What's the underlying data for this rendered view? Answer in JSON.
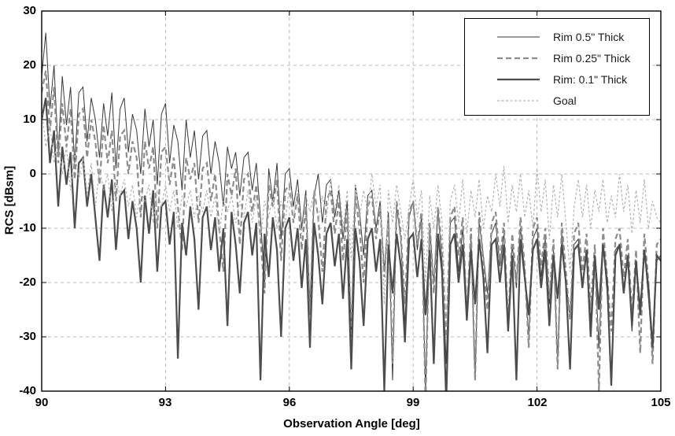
{
  "chart_data": {
    "type": "line",
    "title": "",
    "xlabel": "Observation Angle [deg]",
    "ylabel": "RCS [dBsm]",
    "xlim": [
      90,
      105
    ],
    "ylim": [
      -40,
      30
    ],
    "xticks": [
      90,
      93,
      96,
      99,
      102,
      105
    ],
    "yticks": [
      30,
      20,
      10,
      0,
      -10,
      -20,
      -30,
      -40
    ],
    "grid": true,
    "grid_color": "#b9b9b9",
    "axis_color": "#000000",
    "legend_position": "top-right",
    "x_start": 90,
    "x_step": 0.1,
    "series": [
      {
        "name": "Rim 0.5\" Thick",
        "color": "#383838",
        "width": 1,
        "dash": "",
        "values": [
          18,
          26,
          12,
          20,
          4,
          18,
          9,
          16,
          2,
          15,
          16,
          6,
          14,
          10,
          3,
          13,
          7,
          15,
          1,
          12,
          14,
          4,
          11,
          8,
          0,
          12,
          5,
          10,
          -2,
          11,
          13,
          2,
          9,
          6,
          -3,
          10,
          3,
          8,
          -1,
          7,
          8,
          0,
          6,
          2,
          -6,
          5,
          1,
          4,
          -4,
          3,
          4,
          -3,
          2,
          -8,
          -20,
          1,
          -5,
          2,
          -12,
          0,
          1,
          -6,
          -1,
          -10,
          -3,
          -25,
          -4,
          0,
          -9,
          -2,
          -1,
          -8,
          -3,
          -12,
          -5,
          -30,
          -2,
          -7,
          -15,
          -4,
          -3,
          -10,
          -5,
          -18,
          -7,
          -38,
          -6,
          -12,
          -28,
          -8,
          -5,
          -14,
          -8,
          -40,
          -10,
          -20,
          -7,
          -16,
          -35,
          -9,
          -8,
          -18,
          -10,
          -25,
          -12,
          -38,
          -9,
          -15,
          -22,
          -11,
          -9,
          -17,
          -11,
          -28,
          -13,
          -21,
          -10,
          -18,
          -30,
          -12,
          -10,
          -19,
          -12,
          -24,
          -14,
          -35,
          -11,
          -20,
          -26,
          -13,
          -12,
          -20,
          -14,
          -27,
          -15,
          -32,
          -13,
          -22,
          -38,
          -14,
          -13,
          -21,
          -15,
          -29,
          -16,
          -24,
          -14,
          -23,
          -33,
          -16,
          -15
        ]
      },
      {
        "name": "Rim 0.25\" Thick",
        "color": "#8c8c8c",
        "width": 2.2,
        "dash": "7,4",
        "values": [
          15,
          19,
          8,
          16,
          2,
          13,
          5,
          12,
          -1,
          11,
          12,
          3,
          10,
          6,
          -2,
          9,
          2,
          8,
          -5,
          7,
          8,
          0,
          6,
          3,
          -8,
          6,
          1,
          5,
          -10,
          4,
          5,
          -2,
          3,
          -6,
          -14,
          3,
          -1,
          2,
          -9,
          1,
          2,
          -5,
          0,
          -10,
          -18,
          0,
          -4,
          1,
          -13,
          -1,
          0,
          -7,
          -2,
          -12,
          -22,
          -2,
          -6,
          -1,
          -16,
          -3,
          -2,
          -9,
          -4,
          -14,
          -6,
          -26,
          -3,
          -8,
          -18,
          -5,
          -3,
          -11,
          -5,
          -16,
          -7,
          -30,
          -4,
          -10,
          -20,
          -6,
          -4,
          -12,
          -6,
          -19,
          -8,
          -35,
          -5,
          -11,
          -24,
          -7,
          -5,
          -13,
          -7,
          -42,
          -9,
          -22,
          -6,
          -14,
          -30,
          -8,
          -6,
          -15,
          -8,
          -26,
          -10,
          -38,
          -7,
          -16,
          -25,
          -9,
          -7,
          -16,
          -9,
          -28,
          -11,
          -20,
          -8,
          -17,
          -32,
          -10,
          -8,
          -17,
          -10,
          -23,
          -12,
          -36,
          -9,
          -18,
          -27,
          -11,
          -9,
          -18,
          -11,
          -25,
          -13,
          -40,
          -10,
          -19,
          -29,
          -12,
          -10,
          -19,
          -12,
          -26,
          -14,
          -33,
          -11,
          -20,
          -35,
          -13,
          -12
        ]
      },
      {
        "name": "Rim: 0.1\" Thick",
        "color": "#4d4d4d",
        "width": 2.2,
        "dash": "",
        "values": [
          10,
          14,
          2,
          8,
          -6,
          5,
          -2,
          4,
          -10,
          2,
          3,
          -6,
          0,
          -8,
          -16,
          -2,
          -8,
          -1,
          -14,
          -4,
          -3,
          -12,
          -5,
          -10,
          -20,
          -4,
          -11,
          -3,
          -18,
          -6,
          -5,
          -13,
          -7,
          -34,
          -9,
          -15,
          -6,
          -12,
          -25,
          -8,
          -6,
          -14,
          -8,
          -18,
          -10,
          -28,
          -7,
          -13,
          -22,
          -9,
          -7,
          -15,
          -9,
          -38,
          -11,
          -19,
          -8,
          -14,
          -30,
          -10,
          -8,
          -16,
          -10,
          -21,
          -12,
          -32,
          -9,
          -15,
          -24,
          -11,
          -9,
          -17,
          -11,
          -23,
          -12,
          -36,
          -10,
          -16,
          -28,
          -12,
          -10,
          -18,
          -12,
          -40,
          -13,
          -22,
          -11,
          -17,
          -31,
          -12,
          -11,
          -19,
          -12,
          -26,
          -14,
          -35,
          -11,
          -18,
          -42,
          -13,
          -11,
          -20,
          -13,
          -27,
          -14,
          -24,
          -12,
          -19,
          -33,
          -13,
          -12,
          -20,
          -13,
          -29,
          -15,
          -38,
          -12,
          -19,
          -26,
          -14,
          -12,
          -21,
          -14,
          -28,
          -15,
          -23,
          -13,
          -20,
          -36,
          -14,
          -13,
          -21,
          -14,
          -30,
          -15,
          -25,
          -13,
          -20,
          -39,
          -15,
          -13,
          -22,
          -15,
          -28,
          -16,
          -26,
          -14,
          -21,
          -32,
          -15,
          -16
        ]
      },
      {
        "name": "Goal",
        "color": "#b3b3b3",
        "width": 1.2,
        "dash": "3,2.5",
        "values": [
          12,
          5,
          9,
          2,
          7,
          0,
          5,
          -3,
          4,
          -1,
          3,
          -4,
          2,
          -6,
          1,
          -3,
          0,
          -7,
          -1,
          -4,
          -1,
          -6,
          -2,
          -8,
          -3,
          -5,
          -2,
          -9,
          -3,
          -6,
          -2,
          -7,
          -3,
          -10,
          -4,
          -6,
          -3,
          -8,
          -4,
          -7,
          -3,
          -8,
          -4,
          -11,
          -5,
          -7,
          -4,
          -9,
          -5,
          -8,
          -3,
          -9,
          -4,
          -12,
          -5,
          -8,
          -4,
          -10,
          -5,
          -9,
          -2,
          -8,
          -3,
          -11,
          -4,
          -7,
          -3,
          -9,
          -4,
          -8,
          -1,
          -7,
          -2,
          -10,
          -3,
          -16,
          -2,
          -8,
          -3,
          -7,
          0,
          -6,
          -2,
          -24,
          -3,
          -9,
          -2,
          -7,
          -12,
          -6,
          -1,
          -8,
          -3,
          -20,
          -4,
          -10,
          -2,
          -9,
          -28,
          -5,
          -2,
          -9,
          -1,
          -11,
          -3,
          -8,
          -1,
          -10,
          -4,
          -7,
          0,
          -6,
          1.5,
          -9,
          -2,
          -7,
          0,
          -8,
          -3,
          -10,
          1,
          -7,
          -1,
          -12,
          -2,
          -8,
          0,
          -9,
          -18,
          -6,
          -1,
          -8,
          -2,
          -10,
          -3,
          -7,
          -1,
          -9,
          -4,
          -8,
          0,
          -7,
          -2,
          -11,
          -3,
          -9,
          -1,
          -10,
          -5,
          -8,
          -9
        ]
      }
    ]
  }
}
